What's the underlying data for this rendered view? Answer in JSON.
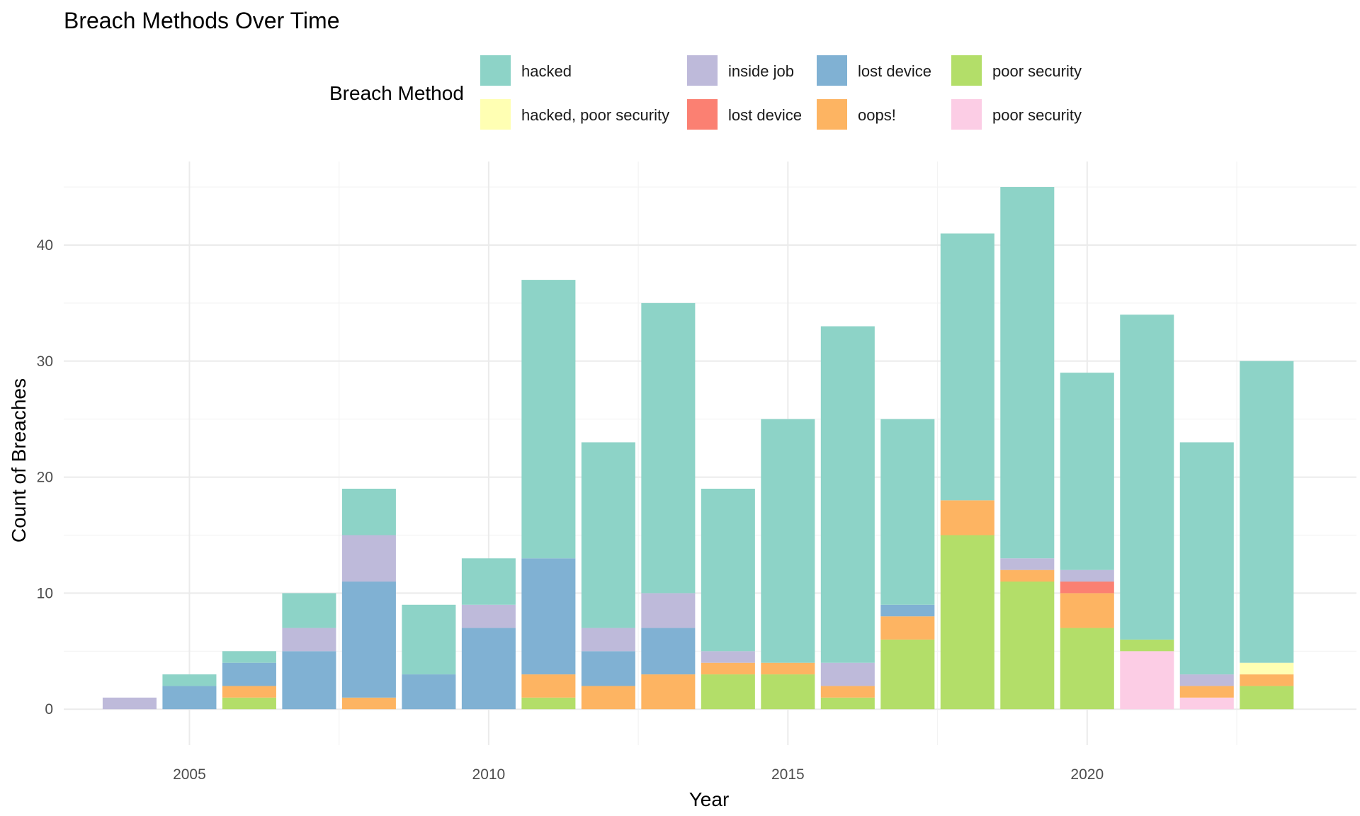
{
  "chart_data": {
    "type": "bar",
    "stacked": true,
    "title": "Breach Methods Over Time",
    "xlabel": "Year",
    "ylabel": "Count of Breaches",
    "xlim": [
      2002.9,
      2024.5
    ],
    "ylim": [
      -3.1,
      47.2
    ],
    "xticks": [
      2005,
      2010,
      2015,
      2020
    ],
    "yticks": [
      0,
      10,
      20,
      30,
      40
    ],
    "grid": true,
    "legend_title": "Breach Method",
    "legend_position": "top",
    "legend": [
      {
        "key": "hacked",
        "label": "hacked",
        "color": "#8DD3C7"
      },
      {
        "key": "inside_job",
        "label": "inside job",
        "color": "#BEBADA"
      },
      {
        "key": "lost_device",
        "label": "lost device",
        "color": "#80B1D3"
      },
      {
        "key": "poor_security",
        "label": "poor security",
        "color": "#B3DE69"
      },
      {
        "key": "hacked_poor_security",
        "label": "hacked, poor security",
        "color": "#FFFFB3"
      },
      {
        "key": "lost_device_2",
        "label": "lost device",
        "color": "#FB8072"
      },
      {
        "key": "oops",
        "label": "oops!",
        "color": "#FDB462"
      },
      {
        "key": "poor_security_2",
        "label": "poor security",
        "color": "#FCCDE5"
      }
    ],
    "stack_order": [
      "poor_security_2",
      "poor_security",
      "oops",
      "lost_device_2",
      "lost_device",
      "inside_job",
      "hacked_poor_security",
      "hacked"
    ],
    "categories": [
      2004,
      2005,
      2006,
      2007,
      2008,
      2009,
      2010,
      2011,
      2012,
      2013,
      2014,
      2015,
      2016,
      2017,
      2018,
      2019,
      2020,
      2021,
      2022,
      2023
    ],
    "series": [
      {
        "key": "poor_security_2",
        "values": [
          0,
          0,
          0,
          0,
          0,
          0,
          0,
          0,
          0,
          0,
          0,
          0,
          0,
          0,
          0,
          0,
          0,
          5,
          1,
          0
        ]
      },
      {
        "key": "poor_security",
        "values": [
          0,
          0,
          1,
          0,
          0,
          0,
          0,
          1,
          0,
          0,
          3,
          3,
          1,
          6,
          15,
          11,
          7,
          1,
          0,
          2
        ]
      },
      {
        "key": "oops",
        "values": [
          0,
          0,
          1,
          0,
          1,
          0,
          0,
          2,
          2,
          3,
          1,
          1,
          1,
          2,
          3,
          1,
          3,
          0,
          1,
          1
        ]
      },
      {
        "key": "lost_device_2",
        "values": [
          0,
          0,
          0,
          0,
          0,
          0,
          0,
          0,
          0,
          0,
          0,
          0,
          0,
          0,
          0,
          0,
          1,
          0,
          0,
          0
        ]
      },
      {
        "key": "lost_device",
        "values": [
          0,
          2,
          2,
          5,
          10,
          3,
          7,
          10,
          3,
          4,
          0,
          0,
          0,
          1,
          0,
          0,
          0,
          0,
          0,
          0
        ]
      },
      {
        "key": "inside_job",
        "values": [
          1,
          0,
          0,
          2,
          4,
          0,
          2,
          0,
          2,
          3,
          1,
          0,
          2,
          0,
          0,
          1,
          1,
          0,
          1,
          0
        ]
      },
      {
        "key": "hacked_poor_security",
        "values": [
          0,
          0,
          0,
          0,
          0,
          0,
          0,
          0,
          0,
          0,
          0,
          0,
          0,
          0,
          0,
          0,
          0,
          0,
          0,
          1
        ]
      },
      {
        "key": "hacked",
        "values": [
          0,
          1,
          1,
          3,
          4,
          6,
          4,
          24,
          16,
          25,
          14,
          21,
          29,
          16,
          23,
          32,
          17,
          28,
          20,
          26
        ]
      }
    ]
  }
}
